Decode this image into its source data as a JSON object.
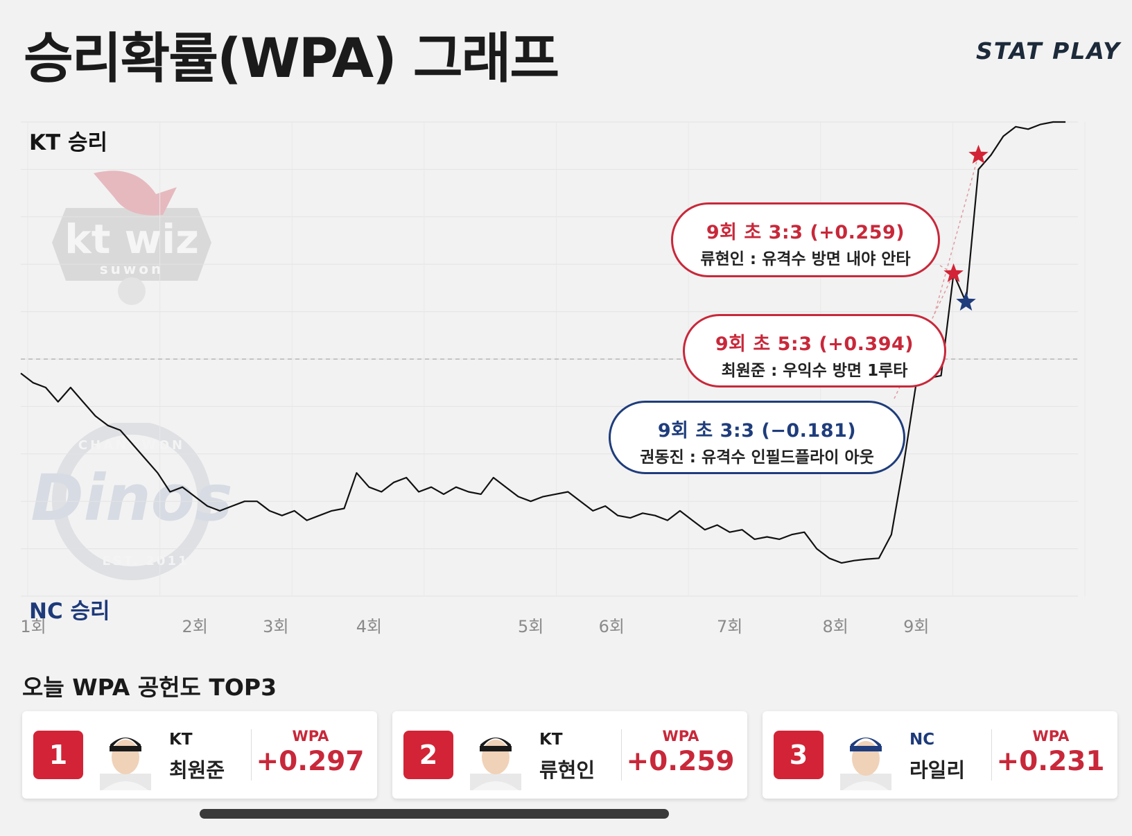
{
  "header": {
    "title": "승리확률(WPA) 그래프",
    "brand": "STAT PLAY"
  },
  "chart_data": {
    "type": "line",
    "y_top_label": "KT 승리",
    "y_bottom_label": "NC 승리",
    "x_tick_labels": [
      "1회",
      "2회",
      "3회",
      "4회",
      "5회",
      "6회",
      "7회",
      "8회",
      "9회"
    ],
    "x_tick_positions": [
      0,
      13,
      19.5,
      27,
      40,
      46.5,
      56,
      64.5,
      71
    ],
    "xlim": [
      0,
      85
    ],
    "ylim": [
      0,
      1
    ],
    "reference_line": 0.5,
    "grid": true,
    "series": [
      {
        "points": [
          [
            0,
            0.47
          ],
          [
            1,
            0.45
          ],
          [
            2,
            0.44
          ],
          [
            3,
            0.41
          ],
          [
            4,
            0.44
          ],
          [
            5,
            0.41
          ],
          [
            6,
            0.38
          ],
          [
            7,
            0.36
          ],
          [
            8,
            0.35
          ],
          [
            9,
            0.32
          ],
          [
            10,
            0.29
          ],
          [
            11,
            0.26
          ],
          [
            12,
            0.22
          ],
          [
            13,
            0.23
          ],
          [
            14,
            0.21
          ],
          [
            15,
            0.19
          ],
          [
            16,
            0.18
          ],
          [
            17,
            0.19
          ],
          [
            18,
            0.2
          ],
          [
            19,
            0.2
          ],
          [
            20,
            0.18
          ],
          [
            21,
            0.17
          ],
          [
            22,
            0.18
          ],
          [
            23,
            0.16
          ],
          [
            24,
            0.17
          ],
          [
            25,
            0.18
          ],
          [
            26,
            0.185
          ],
          [
            27,
            0.26
          ],
          [
            28,
            0.23
          ],
          [
            29,
            0.22
          ],
          [
            30,
            0.24
          ],
          [
            31,
            0.25
          ],
          [
            32,
            0.22
          ],
          [
            33,
            0.23
          ],
          [
            34,
            0.215
          ],
          [
            35,
            0.23
          ],
          [
            36,
            0.22
          ],
          [
            37,
            0.215
          ],
          [
            38,
            0.25
          ],
          [
            39,
            0.23
          ],
          [
            40,
            0.21
          ],
          [
            41,
            0.2
          ],
          [
            42,
            0.21
          ],
          [
            43,
            0.215
          ],
          [
            44,
            0.22
          ],
          [
            45,
            0.2
          ],
          [
            46,
            0.18
          ],
          [
            47,
            0.19
          ],
          [
            48,
            0.17
          ],
          [
            49,
            0.165
          ],
          [
            50,
            0.175
          ],
          [
            51,
            0.17
          ],
          [
            52,
            0.16
          ],
          [
            53,
            0.18
          ],
          [
            54,
            0.16
          ],
          [
            55,
            0.14
          ],
          [
            56,
            0.15
          ],
          [
            57,
            0.135
          ],
          [
            58,
            0.14
          ],
          [
            59,
            0.12
          ],
          [
            60,
            0.125
          ],
          [
            61,
            0.12
          ],
          [
            62,
            0.13
          ],
          [
            63,
            0.135
          ],
          [
            64,
            0.1
          ],
          [
            65,
            0.08
          ],
          [
            66,
            0.07
          ],
          [
            67,
            0.075
          ],
          [
            68,
            0.078
          ],
          [
            69,
            0.08
          ],
          [
            70,
            0.13
          ],
          [
            71,
            0.28
          ],
          [
            72,
            0.45
          ],
          [
            73,
            0.46
          ],
          [
            74,
            0.465
          ],
          [
            75,
            0.68
          ],
          [
            76,
            0.62
          ],
          [
            77,
            0.9
          ],
          [
            78,
            0.93
          ],
          [
            79,
            0.97
          ],
          [
            80,
            0.99
          ],
          [
            81,
            0.985
          ],
          [
            82,
            0.995
          ],
          [
            83,
            1.0
          ],
          [
            84,
            1.0
          ]
        ]
      }
    ],
    "markers": [
      {
        "x": 75,
        "y": 0.68,
        "color": "#d22436",
        "shape": "star"
      },
      {
        "x": 76,
        "y": 0.62,
        "color": "#1f3d7c",
        "shape": "star"
      },
      {
        "x": 77,
        "y": 0.93,
        "color": "#d22436",
        "shape": "star"
      }
    ],
    "annotations": [
      {
        "line1": "9회 초  3:3  (+0.259)",
        "line2": "류현인 : 유격수 방면 내야 안타",
        "color": "red"
      },
      {
        "line1": "9회 초  5:3  (+0.394)",
        "line2": "최원준 : 우익수 방면 1루타",
        "color": "red"
      },
      {
        "line1": "9회 초  3:3  (−0.181)",
        "line2": "권동진 : 유격수 인필드플라이 아웃",
        "color": "blue"
      }
    ]
  },
  "top3": {
    "title": "오늘 WPA 공헌도 TOP3",
    "wpa_label": "WPA",
    "players": [
      {
        "rank": "1",
        "team": "KT",
        "name": "최원준",
        "wpa": "+0.297"
      },
      {
        "rank": "2",
        "team": "KT",
        "name": "류현인",
        "wpa": "+0.259"
      },
      {
        "rank": "3",
        "team": "NC",
        "name": "라일리",
        "wpa": "+0.231"
      }
    ]
  },
  "logos": {
    "kt_text": "kt wiz",
    "kt_sub": "suwon",
    "nc_text": "Dinos",
    "nc_ring_top": "CHANGWON",
    "nc_ring_bottom": "EST. 2011"
  },
  "colors": {
    "kt_red": "#d22436",
    "nc_blue": "#1f3d7c",
    "line": "#111111"
  }
}
